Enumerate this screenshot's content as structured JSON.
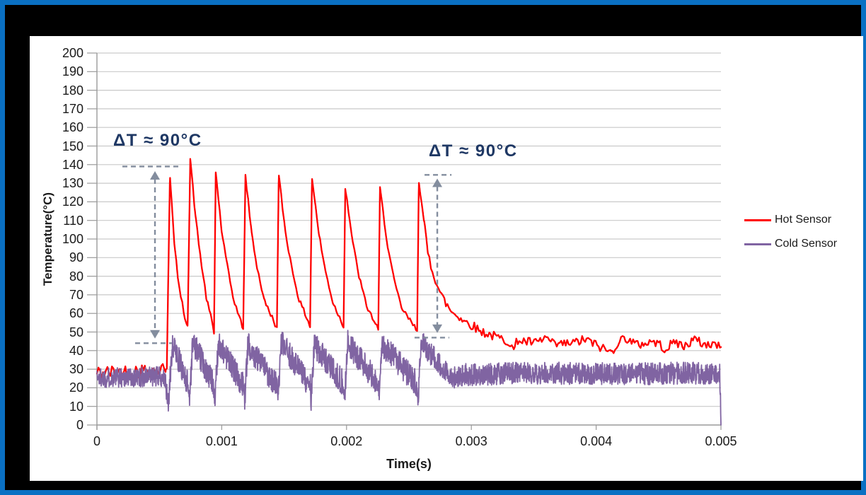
{
  "window": {
    "border_color": "#0a70c3",
    "frame_color": "#000000",
    "chart_bg": "#ffffff"
  },
  "chart_data": {
    "type": "line",
    "title": "",
    "xlabel": "Time(s)",
    "ylabel": "Temperature(°C)",
    "xlim": [
      0,
      0.005
    ],
    "ylim": [
      0,
      200
    ],
    "xticks": [
      0,
      0.001,
      0.002,
      0.003,
      0.004,
      0.005
    ],
    "xtick_labels": [
      "0",
      "0.001",
      "0.002",
      "0.003",
      "0.004",
      "0.005"
    ],
    "ytick_step": 10,
    "ytick_labels": [
      "0",
      "10",
      "20",
      "30",
      "40",
      "50",
      "60",
      "70",
      "80",
      "90",
      "100",
      "110",
      "120",
      "130",
      "140",
      "150",
      "160",
      "170",
      "180",
      "190",
      "200"
    ],
    "grid": "horizontal-only",
    "sample_dt": 2e-06,
    "colors": {
      "grid": "#c9c9c9",
      "axis": "#9a9a9a",
      "tick_text": "#1a1a1a",
      "annotation": "#1f3864",
      "arrow": "#838d9e",
      "hot": "#ff0000",
      "cold": "#8064a2"
    },
    "legend": {
      "position": "right",
      "items": [
        {
          "name": "Hot Sensor",
          "color": "#ff0000"
        },
        {
          "name": "Cold Sensor",
          "color": "#8064a2"
        }
      ]
    },
    "annotations": [
      {
        "text": "ΔT ≈ 90°C",
        "left": 118,
        "top": 134
      },
      {
        "text": "ΔT ≈ 90°C",
        "left": 564,
        "top": 149
      }
    ],
    "arrows": [
      {
        "t": 0.000465,
        "T_top": 136.5,
        "T_bot": 46.5,
        "bars": [
          {
            "t0": 0.000204,
            "t1": 0.000658,
            "T": 139
          },
          {
            "t0": 0.000306,
            "t1": 0.000601,
            "T": 44
          }
        ]
      },
      {
        "t": 0.002727,
        "T_top": 132.5,
        "T_bot": 49.5,
        "bars": [
          {
            "t0": 0.002625,
            "t1": 0.002841,
            "T": 134.5
          },
          {
            "t0": 0.002545,
            "t1": 0.002823,
            "T": 47
          }
        ]
      }
    ],
    "series": [
      {
        "name": "Hot Sensor",
        "color": "#ff0000",
        "width": 2.3,
        "seed": 42,
        "noise_mode": "smooth",
        "noise_zones": [
          {
            "t1": 0.00055,
            "amp": 4
          },
          {
            "t1": 0.00262,
            "amp": 1.3
          },
          {
            "t1": 0.005,
            "amp": 2.6
          }
        ],
        "keypoints": [
          [
            0,
            28
          ],
          [
            0.00054,
            30
          ],
          [
            0.00056,
            31
          ],
          [
            0.000585,
            135
          ],
          [
            0.00062,
            97
          ],
          [
            0.00066,
            73
          ],
          [
            0.000705,
            58
          ],
          [
            0.000727,
            54
          ],
          [
            0.000748,
            143
          ],
          [
            0.00079,
            112
          ],
          [
            0.00083,
            90
          ],
          [
            0.00088,
            67
          ],
          [
            0.000925,
            55
          ],
          [
            0.000938,
            49
          ],
          [
            0.000952,
            136
          ],
          [
            0.001,
            104
          ],
          [
            0.00104,
            87
          ],
          [
            0.00109,
            69
          ],
          [
            0.00114,
            58
          ],
          [
            0.001172,
            52
          ],
          [
            0.00119,
            134
          ],
          [
            0.00124,
            103
          ],
          [
            0.00128,
            86
          ],
          [
            0.00134,
            67
          ],
          [
            0.00141,
            57
          ],
          [
            0.001442,
            52
          ],
          [
            0.001457,
            134
          ],
          [
            0.00151,
            104
          ],
          [
            0.00156,
            85
          ],
          [
            0.00162,
            67
          ],
          [
            0.00168,
            58
          ],
          [
            0.001708,
            53
          ],
          [
            0.001723,
            133
          ],
          [
            0.00178,
            102
          ],
          [
            0.00183,
            83
          ],
          [
            0.00189,
            66
          ],
          [
            0.00195,
            57
          ],
          [
            0.001976,
            53
          ],
          [
            0.00199,
            128
          ],
          [
            0.00205,
            98
          ],
          [
            0.0021,
            80
          ],
          [
            0.00216,
            64
          ],
          [
            0.00222,
            56
          ],
          [
            0.002254,
            51
          ],
          [
            0.002268,
            127
          ],
          [
            0.00233,
            96
          ],
          [
            0.00238,
            78
          ],
          [
            0.00244,
            63
          ],
          [
            0.00251,
            56
          ],
          [
            0.002566,
            51
          ],
          [
            0.002579,
            132
          ],
          [
            0.00262,
            109
          ],
          [
            0.00265,
            93
          ],
          [
            0.00268,
            85
          ],
          [
            0.00271,
            79
          ],
          [
            0.00275,
            71
          ],
          [
            0.00279,
            66
          ],
          [
            0.00284,
            61
          ],
          [
            0.00289,
            59
          ],
          [
            0.00294,
            56
          ],
          [
            0.003,
            54
          ],
          [
            0.00306,
            51
          ],
          [
            0.00313,
            49
          ],
          [
            0.00321,
            47
          ],
          [
            0.0033,
            45
          ],
          [
            0.00334,
            40
          ],
          [
            0.00337,
            46
          ],
          [
            0.00341,
            45
          ],
          [
            0.00352,
            44
          ],
          [
            0.0036,
            47
          ],
          [
            0.00366,
            43
          ],
          [
            0.00381,
            44
          ],
          [
            0.00392,
            46
          ],
          [
            0.004,
            43
          ],
          [
            0.00412,
            39
          ],
          [
            0.00418,
            45
          ],
          [
            0.00424,
            47
          ],
          [
            0.00432,
            43
          ],
          [
            0.00446,
            45
          ],
          [
            0.00456,
            41
          ],
          [
            0.00464,
            45
          ],
          [
            0.0047,
            42
          ],
          [
            0.00478,
            46
          ],
          [
            0.00488,
            43
          ],
          [
            0.00495,
            44
          ],
          [
            0.005,
            41
          ]
        ]
      },
      {
        "name": "Cold Sensor",
        "color": "#8064a2",
        "width": 1.8,
        "seed": 1337,
        "noise_mode": "jagged",
        "noise_zones": [
          {
            "t1": 0.00055,
            "amp": 5.5
          },
          {
            "t1": 0.00262,
            "amp": 7
          },
          {
            "t1": 0.005,
            "amp": 6
          }
        ],
        "keypoints": [
          [
            0,
            25.5
          ],
          [
            0.00054,
            26
          ],
          [
            0.000573,
            11
          ],
          [
            0.000605,
            44
          ],
          [
            0.000736,
            21
          ],
          [
            0.000741,
            13
          ],
          [
            0.000768,
            45
          ],
          [
            0.000938,
            21
          ],
          [
            0.000945,
            12
          ],
          [
            0.000972,
            44
          ],
          [
            0.001176,
            21
          ],
          [
            0.001183,
            13
          ],
          [
            0.00121,
            43
          ],
          [
            0.001444,
            21
          ],
          [
            0.00145,
            12
          ],
          [
            0.001477,
            44
          ],
          [
            0.00171,
            21
          ],
          [
            0.001716,
            13
          ],
          [
            0.001743,
            43
          ],
          [
            0.001978,
            22
          ],
          [
            0.001983,
            13
          ],
          [
            0.00201,
            44
          ],
          [
            0.002256,
            22
          ],
          [
            0.002261,
            14
          ],
          [
            0.002288,
            43
          ],
          [
            0.002568,
            22
          ],
          [
            0.002572,
            14
          ],
          [
            0.002599,
            44
          ],
          [
            0.00285,
            25
          ],
          [
            0.0029,
            27
          ],
          [
            0.0035,
            28
          ],
          [
            0.0042,
            27.5
          ],
          [
            0.00499,
            28
          ],
          [
            0.005,
            0
          ]
        ]
      }
    ]
  }
}
